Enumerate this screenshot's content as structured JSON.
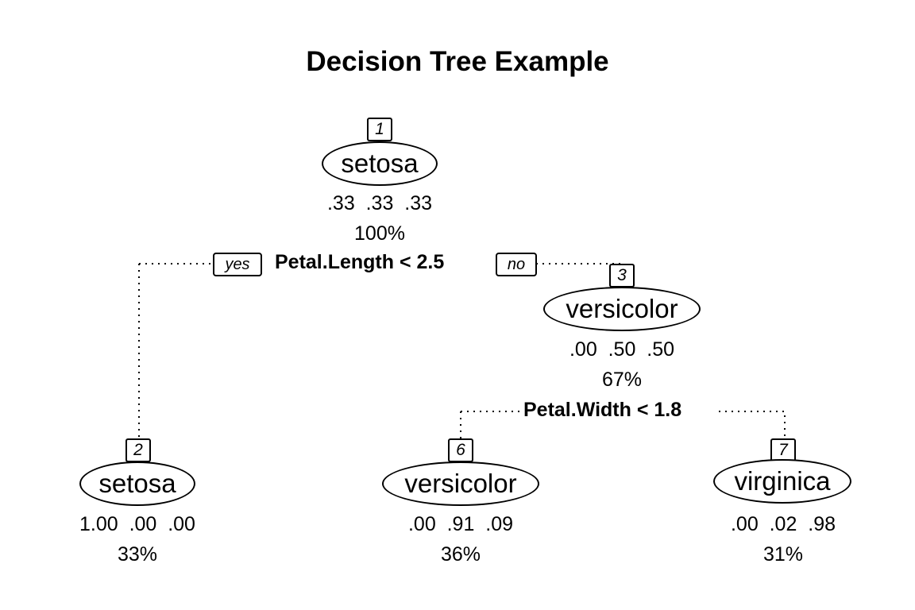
{
  "title": "Decision Tree Example",
  "nodes": [
    {
      "id": "1",
      "label": "setosa",
      "probs": ".33  .33  .33",
      "pct": "100%"
    },
    {
      "id": "2",
      "label": "setosa",
      "probs": "1.00  .00  .00",
      "pct": "33%"
    },
    {
      "id": "3",
      "label": "versicolor",
      "probs": ".00  .50  .50",
      "pct": "67%"
    },
    {
      "id": "6",
      "label": "versicolor",
      "probs": ".00  .91  .09",
      "pct": "36%"
    },
    {
      "id": "7",
      "label": "virginica",
      "probs": ".00  .02  .98",
      "pct": "31%"
    }
  ],
  "splits": [
    {
      "label": "Petal.Length < 2.5",
      "yes": "yes",
      "no": "no"
    },
    {
      "label": "Petal.Width < 1.8"
    }
  ]
}
